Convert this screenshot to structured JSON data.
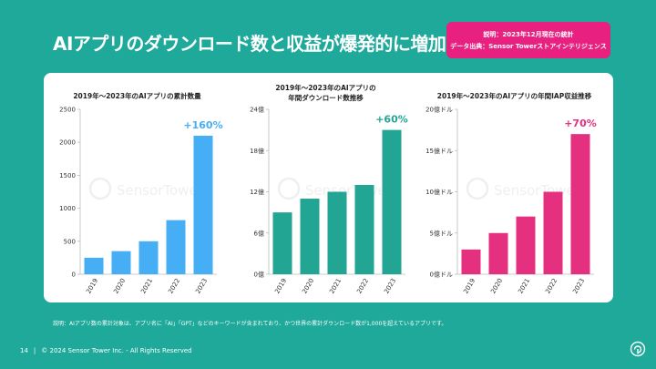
{
  "title": "AIアプリのダウンロード数と収益が爆発的に増加",
  "note": {
    "line1": "説明：2023年12月現在の統計",
    "line2": "データ出典：Sensor Towerストアインテリジェンス"
  },
  "watermark": "SensorTower",
  "footnote": "説明：AIアプリ数の累計対象は、アプリ名に「AI」「GPT」などのキーワードが含まれており、かつ世界の累計ダウンロード数が1,000を超えているアプリです。",
  "footer": {
    "page": "14",
    "copyright": "© 2024 Sensor Tower Inc. - All Rights Reserved"
  },
  "colors": {
    "background": "#1fa99a",
    "accent_pink": "#e8207f",
    "bar_blue": "#45aef5",
    "bar_teal": "#22a593",
    "bar_pink": "#e4307f"
  },
  "chart_data": [
    {
      "type": "bar",
      "title_lines": [
        "2019年～2023年のAIアプリの累計数量"
      ],
      "categories": [
        "2019",
        "2020",
        "2021",
        "2022",
        "2023"
      ],
      "values": [
        250,
        350,
        500,
        820,
        2100
      ],
      "ylim": [
        0,
        2500
      ],
      "yticks": [
        0,
        500,
        1000,
        1500,
        2000,
        2500
      ],
      "ytick_labels": [
        "0",
        "500",
        "1000",
        "1500",
        "2000",
        "2500"
      ],
      "annotation": "+160%",
      "color": "#45aef5"
    },
    {
      "type": "bar",
      "title_lines": [
        "2019年～2023年のAIアプリの",
        "年間ダウンロード数推移"
      ],
      "categories": [
        "2019",
        "2020",
        "2021",
        "2022",
        "2023"
      ],
      "values": [
        9,
        11,
        12,
        13,
        21
      ],
      "ylim": [
        0,
        24
      ],
      "yticks": [
        0,
        6,
        12,
        18,
        24
      ],
      "ytick_labels": [
        "0億",
        "6億",
        "12億",
        "18億",
        "24億"
      ],
      "annotation": "+60%",
      "color": "#22a593"
    },
    {
      "type": "bar",
      "title_lines": [
        "2019年～2023年のAIアプリの年間IAP収益推移"
      ],
      "categories": [
        "2019",
        "2020",
        "2021",
        "2022",
        "2023"
      ],
      "values": [
        3,
        5,
        7,
        10,
        17
      ],
      "ylim": [
        0,
        20
      ],
      "yticks": [
        0,
        5,
        10,
        15,
        20
      ],
      "ytick_labels": [
        "0億ドル",
        "5億ドル",
        "10億ドル",
        "15億ドル",
        "20億ドル"
      ],
      "annotation": "+70%",
      "color": "#e4307f"
    }
  ]
}
